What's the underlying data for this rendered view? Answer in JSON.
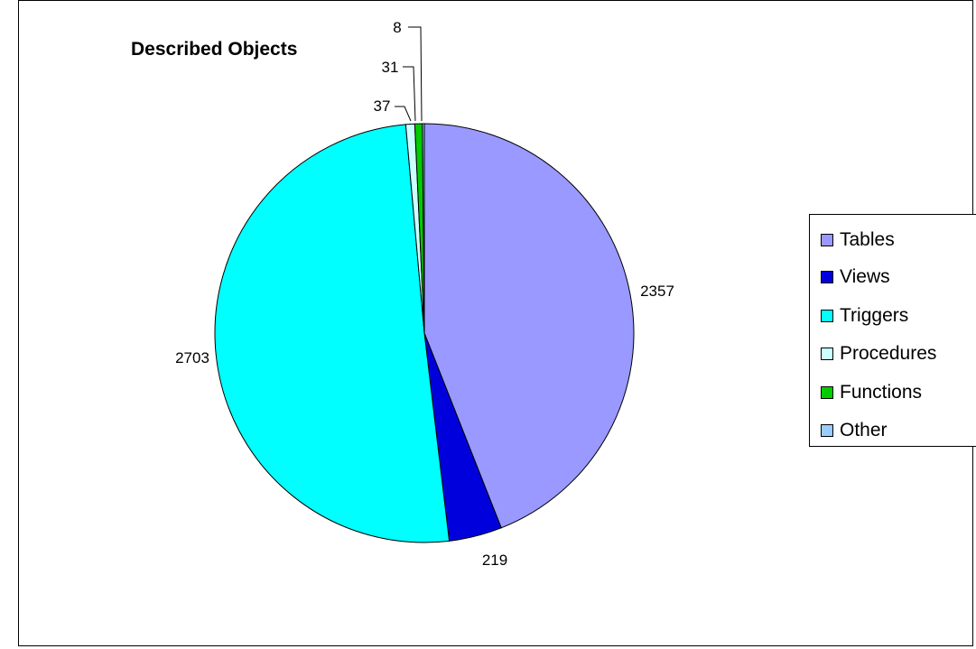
{
  "chart_data": {
    "type": "pie",
    "title": "Described Objects",
    "categories": [
      "Tables",
      "Views",
      "Triggers",
      "Procedures",
      "Functions",
      "Other"
    ],
    "values": [
      2357,
      219,
      2703,
      37,
      31,
      8
    ],
    "data_labels": [
      "2357",
      "219",
      "2703",
      "37",
      "31",
      "8"
    ],
    "colors": [
      "#9999FF",
      "#0000DD",
      "#00FFFF",
      "#CCFFFF",
      "#00CC00",
      "#99CCFF"
    ],
    "legend_position": "right",
    "grid": false
  }
}
